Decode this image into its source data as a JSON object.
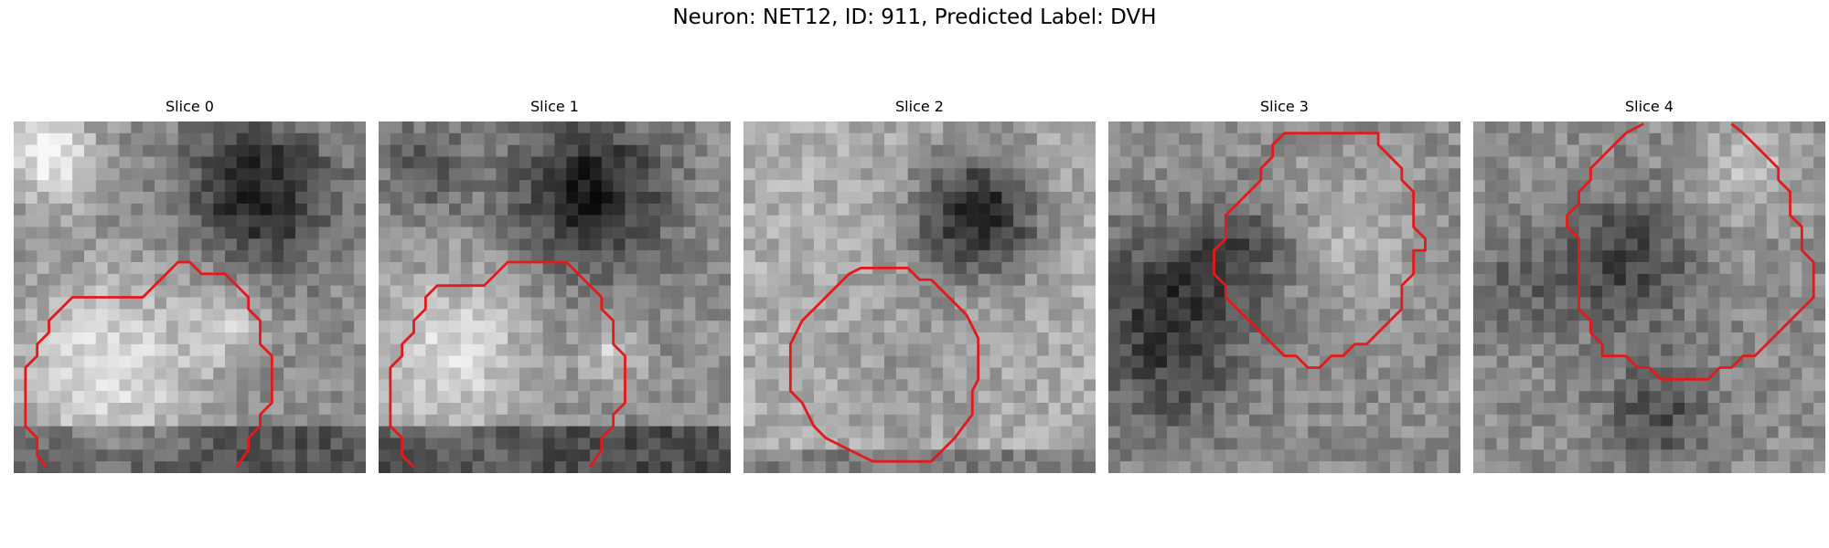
{
  "figure": {
    "title": "Neuron: NET12, ID: 911, Predicted Label: DVH"
  },
  "panels": [
    {
      "title": "Slice 0"
    },
    {
      "title": "Slice 1"
    },
    {
      "title": "Slice 2"
    },
    {
      "title": "Slice 3"
    },
    {
      "title": "Slice 4"
    }
  ],
  "colors": {
    "contour": "#e31a1c",
    "background": "#ffffff"
  }
}
